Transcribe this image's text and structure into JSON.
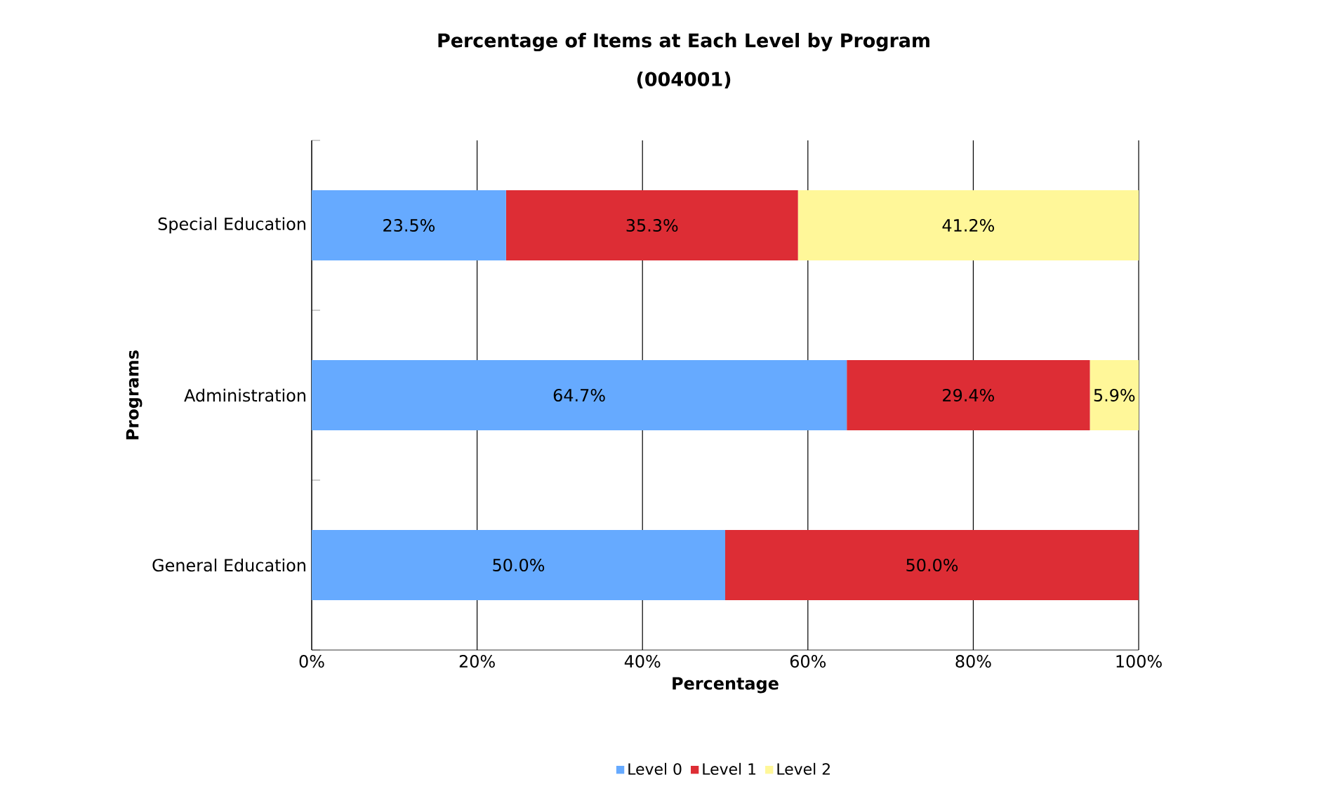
{
  "chart_data": {
    "type": "bar",
    "orientation": "horizontal",
    "stacked": true,
    "title": "Percentage of Items at Each Level by Program",
    "subtitle": "(004001)",
    "xlabel": "Percentage",
    "ylabel": "Programs",
    "categories": [
      "Special Education",
      "Administration",
      "General Education"
    ],
    "series": [
      {
        "name": "Level 0",
        "color": "#66aaff",
        "values": [
          23.5,
          64.7,
          50.0
        ],
        "value_labels": [
          "23.5%",
          "64.7%",
          "50.0%"
        ]
      },
      {
        "name": "Level 1",
        "color": "#dd2d35",
        "values": [
          35.3,
          29.4,
          50.0
        ],
        "value_labels": [
          "35.3%",
          "29.4%",
          "50.0%"
        ]
      },
      {
        "name": "Level 2",
        "color": "#fff799",
        "values": [
          41.2,
          5.9,
          0
        ],
        "value_labels": [
          "41.2%",
          "5.9%",
          null
        ]
      }
    ],
    "xlim": [
      0,
      100
    ],
    "xticks": [
      {
        "value": 0,
        "label": "0%"
      },
      {
        "value": 20,
        "label": "20%"
      },
      {
        "value": 40,
        "label": "40%"
      },
      {
        "value": 60,
        "label": "60%"
      },
      {
        "value": 80,
        "label": "80%"
      },
      {
        "value": 100,
        "label": "100%"
      }
    ],
    "grid": "x",
    "legend": "bottom"
  }
}
